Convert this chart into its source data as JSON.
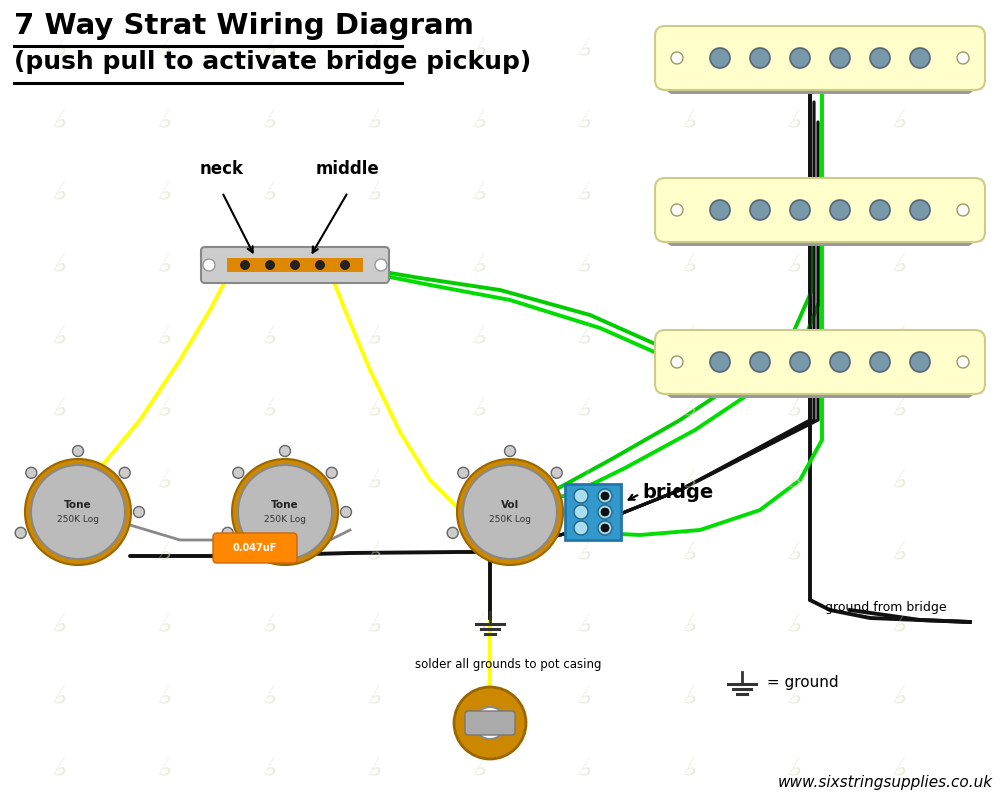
{
  "title_line1": "7 Way Strat Wiring Diagram",
  "title_line2": "(push pull to activate bridge pickup)",
  "bg_color": "#ffffff",
  "watermark_color": "#d8d8c0",
  "pickup_color": "#ffffcc",
  "pickup_base_color": "#999999",
  "pole_color": "#7799aa",
  "pot_body_color": "#bbbbbb",
  "pot_ring_color": "#cc8800",
  "wire_yellow": "#ffff00",
  "wire_green": "#00dd00",
  "wire_black": "#111111",
  "wire_gray": "#888888",
  "capacitor_color": "#ff8800",
  "jack_body": "#cc8800",
  "pushpull_color": "#3399cc",
  "ground_symbol_color": "#333333",
  "text_color": "#000000",
  "website": "www.sixstringsupplies.co.uk"
}
